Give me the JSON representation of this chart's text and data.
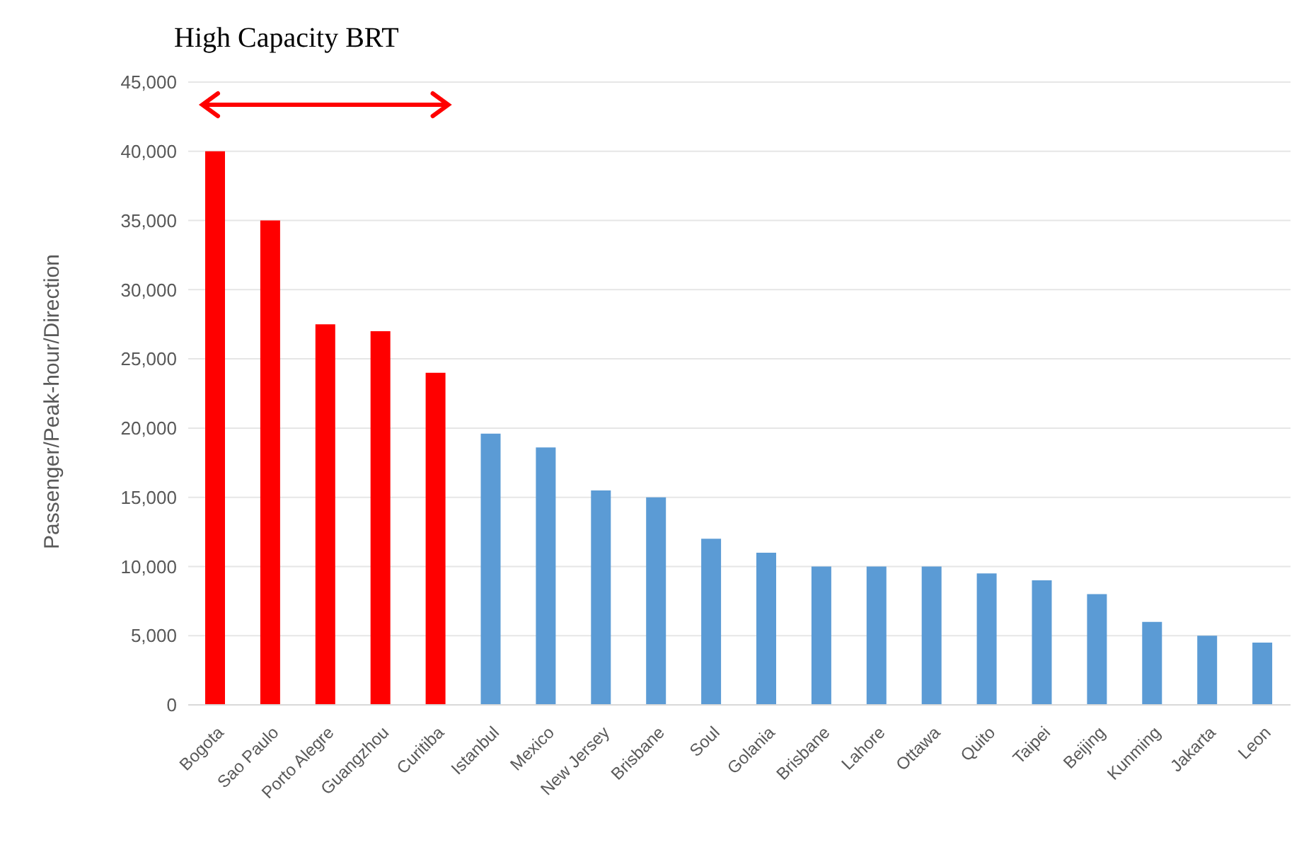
{
  "chart_data": {
    "type": "bar",
    "ylabel": "Passenger/Peak-hour/Direction",
    "categories": [
      "Bogota",
      "Sao Paulo",
      "Porto Alegre",
      "Guangzhou",
      "Curitiba",
      "Istanbul",
      "Mexico",
      "New Jersey",
      "Brisbane",
      "Soul",
      "Golania",
      "Brisbane",
      "Lahore",
      "Ottawa",
      "Quito",
      "Taipei",
      "Beijing",
      "Kunming",
      "Jakarta",
      "Leon"
    ],
    "values": [
      40000,
      35000,
      27500,
      27000,
      24000,
      19600,
      18600,
      15500,
      15000,
      12000,
      11000,
      10000,
      10000,
      10000,
      9500,
      9000,
      8000,
      6000,
      5000,
      4500
    ],
    "colors": [
      "#ff0000",
      "#ff0000",
      "#ff0000",
      "#ff0000",
      "#ff0000",
      "#5b9bd5",
      "#5b9bd5",
      "#5b9bd5",
      "#5b9bd5",
      "#5b9bd5",
      "#5b9bd5",
      "#5b9bd5",
      "#5b9bd5",
      "#5b9bd5",
      "#5b9bd5",
      "#5b9bd5",
      "#5b9bd5",
      "#5b9bd5",
      "#5b9bd5",
      "#5b9bd5"
    ],
    "ylim": [
      0,
      45000
    ],
    "yticks": [
      0,
      {
        "value": 5000,
        "label": "5,000"
      },
      {
        "value": 10000,
        "label": "10,000"
      },
      {
        "value": 15000,
        "label": "15,000"
      },
      {
        "value": 20000,
        "label": "20,000"
      },
      {
        "value": 25000,
        "label": "25,000"
      },
      {
        "value": 30000,
        "label": "30,000"
      },
      {
        "value": 35000,
        "label": "35,000"
      },
      {
        "value": 40000,
        "label": "40,000"
      },
      {
        "value": 45000,
        "label": "45,000"
      }
    ],
    "grid": "y",
    "annotations": [
      "High Capacity BRT"
    ]
  }
}
